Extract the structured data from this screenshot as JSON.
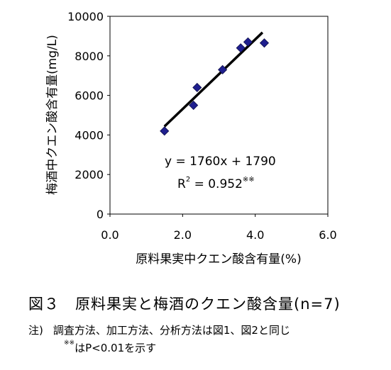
{
  "chart_data": {
    "type": "scatter",
    "xlabel": "原料果実中クエン酸含有量(%)",
    "ylabel": "梅酒中クエン酸含有量(mg/L)",
    "xlim": [
      0,
      6
    ],
    "ylim": [
      0,
      10000
    ],
    "xticks": [
      "0.0",
      "2.0",
      "4.0",
      "6.0"
    ],
    "yticks": [
      "0",
      "2000",
      "4000",
      "6000",
      "8000",
      "10000"
    ],
    "points": [
      {
        "x": 1.5,
        "y": 4200
      },
      {
        "x": 2.3,
        "y": 5500
      },
      {
        "x": 2.4,
        "y": 6400
      },
      {
        "x": 3.1,
        "y": 7300
      },
      {
        "x": 3.6,
        "y": 8400
      },
      {
        "x": 3.8,
        "y": 8700
      },
      {
        "x": 4.25,
        "y": 8650
      }
    ],
    "fit": {
      "slope": 1760,
      "intercept": 1790,
      "x_range": [
        1.5,
        4.2
      ]
    },
    "equation": "y = 1760x + 1790",
    "r2_prefix": "R",
    "r2_power": "2",
    "r2_value": " = 0.952",
    "r2_marker": "※※",
    "marker_color": "#1f1f8f",
    "line_color": "#000000"
  },
  "caption": "図３　原料果実と梅酒のクエン酸含量(n=7)",
  "notes": {
    "label": "注)",
    "text": "調査方法、加工方法、分析方法は図1、図2と同じ",
    "marker": "※※",
    "significance": "はP<0.01を示す"
  }
}
